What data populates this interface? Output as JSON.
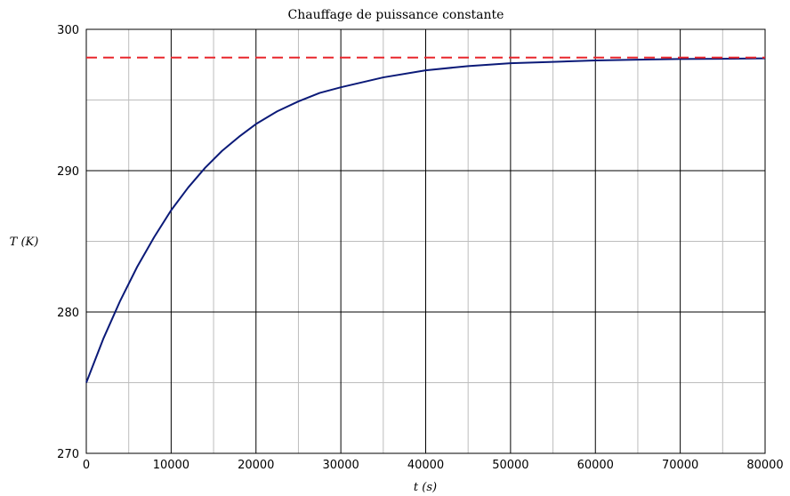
{
  "chart_data": {
    "type": "line",
    "title": "Chauffage de puissance constante",
    "xlabel": "t (s)",
    "ylabel": "T (K)",
    "xlim": [
      0,
      80000
    ],
    "ylim": [
      270,
      300
    ],
    "x_major_ticks": [
      0,
      10000,
      20000,
      30000,
      40000,
      50000,
      60000,
      70000,
      80000
    ],
    "x_minor_ticks": [
      5000,
      15000,
      25000,
      35000,
      45000,
      55000,
      65000,
      75000
    ],
    "y_major_ticks": [
      270,
      280,
      290,
      300
    ],
    "y_minor_ticks": [
      275,
      285,
      295
    ],
    "grid": true,
    "series": [
      {
        "name": "",
        "style": "solid",
        "color": "#0b1a78",
        "x": [
          0,
          2000,
          4000,
          6000,
          8000,
          10000,
          12000,
          14000,
          16000,
          18000,
          20000,
          22500,
          25000,
          27500,
          30000,
          35000,
          40000,
          45000,
          50000,
          55000,
          60000,
          65000,
          70000,
          75000,
          80000
        ],
        "y": [
          275.0,
          278.1,
          280.8,
          283.2,
          285.3,
          287.2,
          288.8,
          290.2,
          291.4,
          292.4,
          293.3,
          294.2,
          294.9,
          295.5,
          295.9,
          296.6,
          297.1,
          297.4,
          297.6,
          297.7,
          297.8,
          297.85,
          297.9,
          297.92,
          297.95
        ]
      },
      {
        "name": "",
        "style": "dashed",
        "color": "#e8262c",
        "x": [
          0,
          80000
        ],
        "y": [
          298,
          298
        ]
      }
    ]
  }
}
